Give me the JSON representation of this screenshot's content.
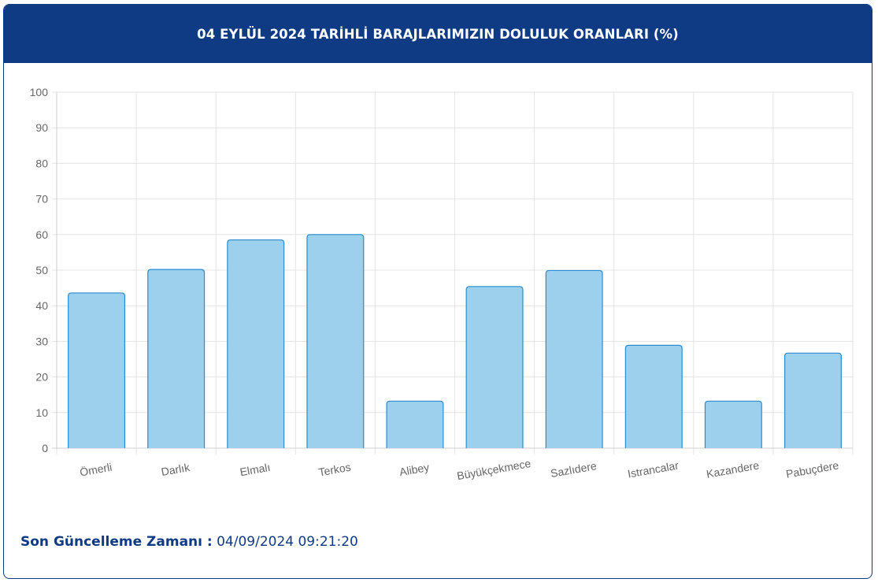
{
  "header": {
    "title": "04 EYLÜL 2024 TARİHLİ BARAJLARIMIZIN DOLULUK ORANLARI (%)"
  },
  "footer": {
    "label": "Son Güncelleme Zamanı :",
    "value": "04/09/2024 09:21:20"
  },
  "colors": {
    "header_bg": "#0f3a84",
    "bar_fill": "#9dd0ec",
    "bar_stroke": "#2a8bd0",
    "grid": "#e3e3e3",
    "tick_text": "#666666"
  },
  "chart_data": {
    "type": "bar",
    "categories": [
      "Ömerli",
      "Darlık",
      "Elmalı",
      "Terkos",
      "Alibey",
      "Büyükçekmece",
      "Sazlıdere",
      "Istrancalar",
      "Kazandere",
      "Pabuçdere"
    ],
    "values": [
      43.6,
      50.2,
      58.5,
      60.0,
      13.2,
      45.4,
      49.9,
      28.9,
      13.2,
      26.7
    ],
    "title": "04 EYLÜL 2024 TARİHLİ BARAJLARIMIZIN DOLULUK ORANLARI (%)",
    "xlabel": "",
    "ylabel": "",
    "ylim": [
      0,
      100
    ],
    "yticks": [
      0,
      10,
      20,
      30,
      40,
      50,
      60,
      70,
      80,
      90,
      100
    ],
    "grid": true,
    "legend": "none"
  }
}
